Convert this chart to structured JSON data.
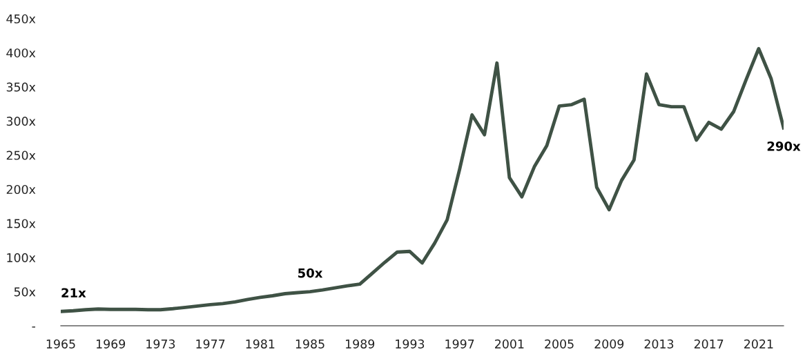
{
  "chart_data": {
    "type": "line",
    "x": [
      1965,
      1966,
      1967,
      1968,
      1969,
      1970,
      1971,
      1972,
      1973,
      1974,
      1975,
      1976,
      1977,
      1978,
      1979,
      1980,
      1981,
      1982,
      1983,
      1984,
      1985,
      1986,
      1987,
      1988,
      1989,
      1990,
      1991,
      1992,
      1993,
      1994,
      1995,
      1996,
      1997,
      1998,
      1999,
      2000,
      2001,
      2002,
      2003,
      2004,
      2005,
      2006,
      2007,
      2008,
      2009,
      2010,
      2011,
      2012,
      2013,
      2014,
      2015,
      2016,
      2017,
      2018,
      2019,
      2020,
      2021,
      2022,
      2023
    ],
    "series": [
      {
        "color": "#3f5245",
        "values": [
          21,
          22,
          23.5,
          24.5,
          24,
          24,
          24,
          23.5,
          23.5,
          25,
          27,
          29,
          31,
          32.5,
          35,
          38.5,
          41.5,
          44,
          47,
          48.5,
          50,
          52.5,
          55.5,
          58.5,
          61,
          77,
          93,
          108,
          109,
          92,
          121,
          155,
          229,
          309,
          280,
          385,
          217,
          189,
          233,
          264,
          322,
          324,
          332,
          203,
          170,
          213,
          243,
          369,
          324,
          321,
          321,
          272,
          298,
          288,
          314,
          361,
          406,
          362,
          290
        ]
      }
    ],
    "xlim": [
      1965,
      2023
    ],
    "xticks": [
      1965,
      1969,
      1973,
      1977,
      1981,
      1985,
      1989,
      1993,
      1997,
      2001,
      2005,
      2009,
      2013,
      2017,
      2021
    ],
    "ylim": [
      0,
      450
    ],
    "yticks": [
      {
        "value": 0,
        "label": "-"
      },
      {
        "value": 50,
        "label": "50x"
      },
      {
        "value": 100,
        "label": "100x"
      },
      {
        "value": 150,
        "label": "150x"
      },
      {
        "value": 200,
        "label": "200x"
      },
      {
        "value": 250,
        "label": "250x"
      },
      {
        "value": 300,
        "label": "300x"
      },
      {
        "value": 350,
        "label": "350x"
      },
      {
        "value": 400,
        "label": "400x"
      },
      {
        "value": 450,
        "label": "450x"
      }
    ],
    "annotations": [
      {
        "text": "21x",
        "x": 1965,
        "y": 21
      },
      {
        "text": "50x",
        "x": 1985,
        "y": 50
      },
      {
        "text": "290x",
        "x": 2023,
        "y": 290
      }
    ],
    "grid": false,
    "legend": false,
    "marker": "none",
    "line_style": "solid"
  }
}
